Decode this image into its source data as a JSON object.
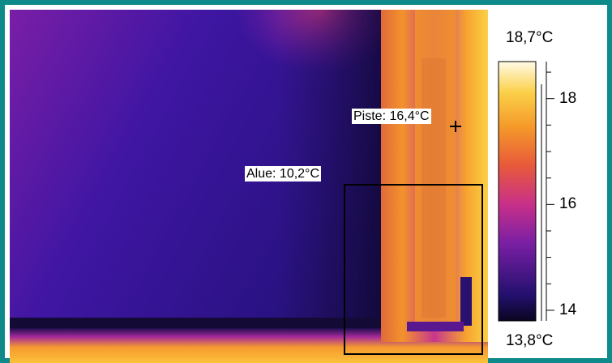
{
  "image": {
    "subject": "thermal-camera-image-of-window-frame",
    "palette": [
      "#140b33",
      "#2a0f6e",
      "#4a14a8",
      "#8a1fa0",
      "#c8338a",
      "#e85a3a",
      "#f5902a",
      "#fbc83a",
      "#fff6c8"
    ]
  },
  "measurements": {
    "spot_label": "Piste: 16,4°C",
    "area_label": "Alue: 10,2°C"
  },
  "colorbar": {
    "max_label": "18,7°C",
    "min_label": "13,8°C",
    "range": [
      13.8,
      18.7
    ],
    "major_ticks": [
      {
        "value": 14,
        "label": "14"
      },
      {
        "value": 16,
        "label": "16"
      },
      {
        "value": 18,
        "label": "18"
      }
    ]
  }
}
